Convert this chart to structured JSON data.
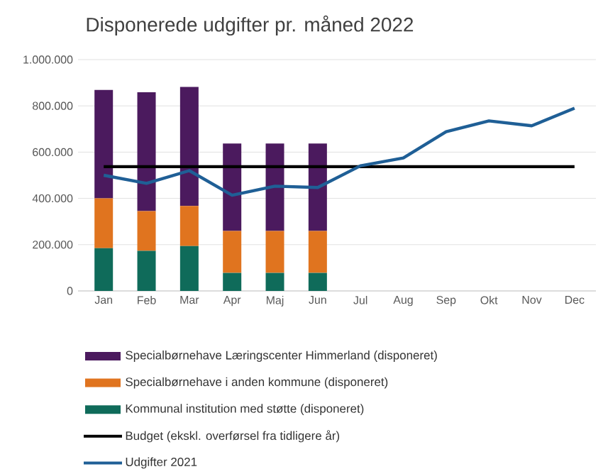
{
  "chart_data": {
    "type": "bar",
    "stacked": true,
    "title": "Disponerede udgifter pr. måned 2022",
    "categories": [
      "Jan",
      "Feb",
      "Mar",
      "Apr",
      "Maj",
      "Jun",
      "Jul",
      "Aug",
      "Sep",
      "Okt",
      "Nov",
      "Dec"
    ],
    "series": [
      {
        "name": "Kommunal institution med støtte (disponeret)",
        "color": "#0f6b5a",
        "values": [
          185000,
          173000,
          194000,
          78000,
          78000,
          78000,
          null,
          null,
          null,
          null,
          null,
          null
        ]
      },
      {
        "name": "Specialbørnehave i anden kommune (disponeret)",
        "color": "#e0741f",
        "values": [
          215000,
          172000,
          173000,
          181000,
          181000,
          181000,
          null,
          null,
          null,
          null,
          null,
          null
        ]
      },
      {
        "name": "Specialbørnehave Læringscenter Himmerland (disponeret)",
        "color": "#4b1a5e",
        "values": [
          469000,
          514000,
          515000,
          378000,
          378000,
          378000,
          null,
          null,
          null,
          null,
          null,
          null
        ]
      },
      {
        "name": "Budget (ekskl. overførsel fra tidligere år)",
        "color": "#000000",
        "type": "line",
        "values": [
          537000,
          537000,
          537000,
          537000,
          537000,
          537000,
          537000,
          537000,
          537000,
          537000,
          537000,
          537000
        ]
      },
      {
        "name": "Udgifter 2021",
        "color": "#1f5f96",
        "type": "line",
        "values": [
          500000,
          465000,
          520000,
          414000,
          453000,
          447000,
          541000,
          575000,
          688000,
          735000,
          714000,
          790000
        ]
      }
    ],
    "ylim": [
      0,
      1000000
    ],
    "yticks": [
      {
        "value": 0,
        "label": "0"
      },
      {
        "value": 200000,
        "label": "200.000"
      },
      {
        "value": 400000,
        "label": "400.000"
      },
      {
        "value": 600000,
        "label": "600.000"
      },
      {
        "value": 800000,
        "label": "800.000"
      },
      {
        "value": 1000000,
        "label": "1.000.000"
      }
    ],
    "grid": "y",
    "legend": "bottom"
  }
}
